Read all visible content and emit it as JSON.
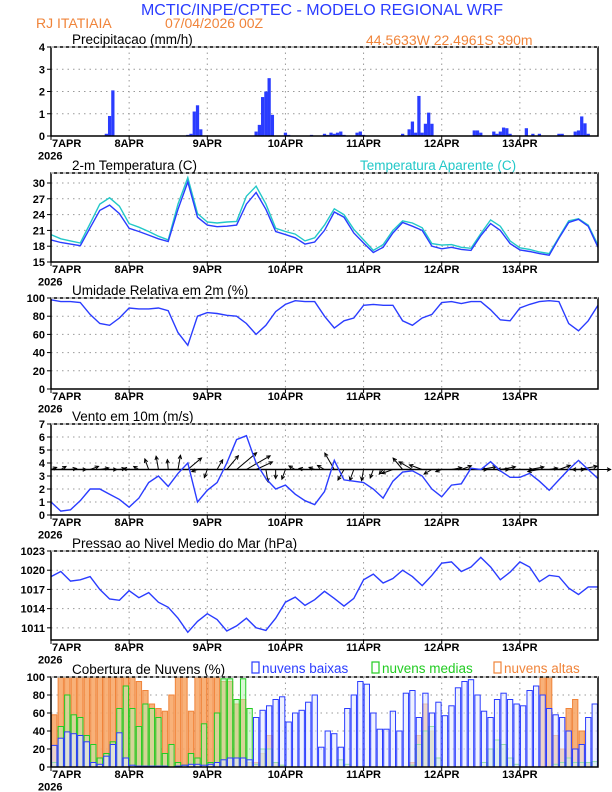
{
  "header": {
    "title": "MCTIC/INPE/CPTEC - MODELO REGIONAL WRF",
    "station": "RJ ITATIAIA",
    "run": "07/04/2026 00Z",
    "location": "44.5633W 22.4961S 390m"
  },
  "colors": {
    "title_blue": "#2a3cff",
    "orange": "#f0843a",
    "line_blue": "#2a3cff",
    "cyan": "#22c8c8",
    "green": "#22cc22",
    "grid": "#9a9a9a"
  },
  "x_axis": {
    "unit": "hours since 07APR2026 00Z",
    "xlim": [
      0,
      168
    ],
    "day_labels": [
      "7APR",
      "8APR",
      "9APR",
      "10APR",
      "11APR",
      "12APR",
      "13APR"
    ],
    "year_label": "2026"
  },
  "chart_data": [
    {
      "id": "precip",
      "type": "bar",
      "title": "Precipitacao (mm/h)",
      "ylim": [
        0,
        4
      ],
      "yticks": [
        0,
        1,
        2,
        3,
        4
      ],
      "grid": true,
      "points": [
        [
          17,
          0.1
        ],
        [
          18,
          0.9
        ],
        [
          19,
          2.05
        ],
        [
          42,
          0.05
        ],
        [
          43,
          0.1
        ],
        [
          44,
          1.1
        ],
        [
          45,
          1.38
        ],
        [
          46,
          0.3
        ],
        [
          63,
          0.2
        ],
        [
          64,
          0.5
        ],
        [
          65,
          1.75
        ],
        [
          66,
          2.0
        ],
        [
          67,
          2.6
        ],
        [
          68,
          0.95
        ],
        [
          72,
          0.15
        ],
        [
          73,
          0.05
        ],
        [
          80,
          0.05
        ],
        [
          84,
          0.1
        ],
        [
          85,
          0.05
        ],
        [
          86,
          0.15
        ],
        [
          87,
          0.1
        ],
        [
          88,
          0.15
        ],
        [
          89,
          0.2
        ],
        [
          90,
          0.05
        ],
        [
          94,
          0.15
        ],
        [
          95,
          0.2
        ],
        [
          96,
          0.05
        ],
        [
          108,
          0.1
        ],
        [
          110,
          0.3
        ],
        [
          111,
          0.65
        ],
        [
          112,
          0.15
        ],
        [
          113,
          1.8
        ],
        [
          114,
          0.15
        ],
        [
          115,
          0.55
        ],
        [
          116,
          1.05
        ],
        [
          117,
          0.55
        ],
        [
          130,
          0.25
        ],
        [
          131,
          0.25
        ],
        [
          132,
          0.15
        ],
        [
          136,
          0.2
        ],
        [
          137,
          0.1
        ],
        [
          138,
          0.2
        ],
        [
          139,
          0.38
        ],
        [
          140,
          0.35
        ],
        [
          141,
          0.1
        ],
        [
          146,
          0.35
        ],
        [
          148,
          0.1
        ],
        [
          150,
          0.1
        ],
        [
          156,
          0.1
        ],
        [
          157,
          0.1
        ],
        [
          161,
          0.2
        ],
        [
          162,
          0.25
        ],
        [
          163,
          0.88
        ],
        [
          164,
          0.57
        ],
        [
          165,
          0.1
        ]
      ]
    },
    {
      "id": "temperature",
      "type": "line",
      "title": "2-m Temperatura (C)",
      "ylim": [
        15,
        31.9
      ],
      "yticks": [
        15,
        18,
        21,
        24,
        27,
        30
      ],
      "grid": true,
      "x_step_hours": 3,
      "series": [
        {
          "name": "2-m Temperatura (C)",
          "color": "#2a3cff",
          "values": [
            19.2,
            18.7,
            18.4,
            18.1,
            21.5,
            24.8,
            25.8,
            24.2,
            21.4,
            20.8,
            20.1,
            19.4,
            18.9,
            25,
            30.2,
            23.5,
            22,
            21.7,
            21.8,
            22,
            26,
            28.2,
            25,
            20.8,
            20.2,
            19.6,
            18.4,
            18.8,
            21,
            24.5,
            23.5,
            20.5,
            18.6,
            16.8,
            17.8,
            20.5,
            22.5,
            21.8,
            21,
            18,
            17.5,
            17.8,
            17.4,
            17.2,
            20,
            22.3,
            21,
            18.5,
            17.3,
            17,
            16.6,
            16.3,
            19.5,
            22.5,
            23.1,
            21.8,
            17.8
          ]
        },
        {
          "name": "Temperatura Aparente (C)",
          "color": "#22c8c8",
          "values": [
            20.2,
            19.4,
            19,
            18.6,
            22.3,
            26,
            27.2,
            25.6,
            22.3,
            21.6,
            20.8,
            19.9,
            19.2,
            26,
            31,
            24.2,
            22.6,
            22.4,
            22.6,
            22.7,
            27.5,
            29.4,
            26,
            21.4,
            20.8,
            20.3,
            19,
            19.6,
            22,
            25.1,
            24,
            21.2,
            19.2,
            17.2,
            18.3,
            21,
            22.8,
            22.4,
            21.5,
            18.5,
            18.2,
            18.3,
            17.8,
            17.6,
            20.4,
            23,
            21.8,
            19,
            17.7,
            17.4,
            16.9,
            16.6,
            19.7,
            22.8,
            23.2,
            22,
            18.2
          ]
        }
      ]
    },
    {
      "id": "humidity",
      "type": "line",
      "title": "Umidade Relativa em 2m (%)",
      "ylim": [
        0,
        100
      ],
      "yticks": [
        0,
        20,
        40,
        60,
        80,
        100
      ],
      "grid": true,
      "x_step_hours": 3,
      "series": [
        {
          "name": "Umidade Relativa",
          "color": "#2a3cff",
          "values": [
            98,
            96,
            96,
            95,
            82,
            72,
            70,
            78,
            89,
            88,
            88,
            89,
            86,
            62,
            48,
            80,
            84,
            83,
            81,
            80,
            72,
            60,
            70,
            85,
            93,
            97,
            96,
            96,
            80,
            67,
            75,
            78,
            92,
            93,
            92,
            92,
            75,
            70,
            78,
            82,
            95,
            96,
            94,
            96,
            96,
            87,
            76,
            75,
            89,
            93,
            96,
            97,
            96,
            72,
            64,
            75,
            92
          ]
        }
      ]
    },
    {
      "id": "wind",
      "type": "line",
      "title": "Vento em 10m (m/s)",
      "ylim": [
        0,
        7
      ],
      "yticks": [
        0,
        1,
        2,
        3,
        4,
        5,
        6,
        7
      ],
      "grid": true,
      "x_step_hours": 3,
      "vector_baseline": 3.5,
      "series": [
        {
          "name": "Velocidade do vento",
          "color": "#2a3cff",
          "values": [
            1,
            0.3,
            0.4,
            1.1,
            2,
            2,
            1.6,
            1.2,
            0.6,
            1.3,
            2.5,
            3,
            2.2,
            3.2,
            4,
            1.0,
            1.9,
            2.5,
            4,
            5.8,
            6.1,
            4,
            2.8,
            2,
            2.3,
            1.6,
            1.1,
            0.8,
            1.8,
            4.2,
            2.7,
            2.6,
            2.5,
            2,
            1.3,
            2.6,
            3.3,
            3.4,
            3,
            2,
            1.4,
            2.3,
            2.4,
            3.6,
            3.5,
            4.1,
            3.4,
            2.9,
            2.9,
            3.2,
            2.6,
            1.9,
            2.7,
            3.5,
            4.2,
            3.5,
            2.8
          ]
        }
      ],
      "vector_direction_deg": [
        20,
        30,
        10,
        0,
        20,
        10,
        0,
        10,
        170,
        150,
        110,
        100,
        95,
        80,
        40,
        200,
        250,
        60,
        50,
        40,
        30,
        25,
        280,
        270,
        250,
        150,
        170,
        160,
        150,
        120,
        240,
        250,
        260,
        250,
        230,
        200,
        130,
        150,
        160,
        210,
        200,
        10,
        20,
        0,
        10,
        0,
        10,
        180,
        0,
        10,
        190,
        10,
        20,
        0,
        10,
        180,
        0
      ]
    },
    {
      "id": "pressure",
      "type": "line",
      "title": "Pressao ao Nivel Medio do Mar (hPa)",
      "ylim": [
        1009.1,
        1023
      ],
      "yticks": [
        1011,
        1014,
        1017,
        1020,
        1023
      ],
      "grid": true,
      "x_step_hours": 3,
      "series": [
        {
          "name": "Pressao",
          "color": "#2a3cff",
          "values": [
            1019,
            1019.8,
            1018.3,
            1018.5,
            1019,
            1017,
            1015.5,
            1015.3,
            1016.8,
            1015.7,
            1016.5,
            1015,
            1014.2,
            1012.5,
            1010.3,
            1012,
            1013.2,
            1012.3,
            1010.5,
            1011.3,
            1012.5,
            1011,
            1010.6,
            1012.5,
            1015,
            1015.8,
            1014.5,
            1015.4,
            1016.7,
            1015.6,
            1014.4,
            1015.6,
            1018.5,
            1019.4,
            1018,
            1018.7,
            1020,
            1019,
            1017.6,
            1019.2,
            1021.1,
            1021.3,
            1019.8,
            1020.5,
            1022,
            1020.5,
            1018.5,
            1019.7,
            1021.3,
            1020.5,
            1018.2,
            1019.2,
            1019,
            1017.2,
            1016.2,
            1017.4,
            1017.4
          ]
        }
      ]
    },
    {
      "id": "clouds",
      "type": "bar",
      "title": "Cobertura de Nuvens (%)",
      "ylim": [
        0,
        100
      ],
      "yticks": [
        0,
        20,
        40,
        60,
        80,
        100
      ],
      "grid": true,
      "x_step_hours": 2,
      "series": [
        {
          "name": "nuvens altas",
          "color": "#f0843a",
          "values": [
            58,
            100,
            100,
            100,
            100,
            100,
            100,
            100,
            100,
            100,
            100,
            100,
            100,
            95,
            85,
            70,
            65,
            62,
            80,
            100,
            100,
            62,
            100,
            100,
            100,
            100,
            95,
            95,
            70,
            75,
            5,
            5,
            15,
            35,
            5,
            2,
            0,
            0,
            0,
            0,
            0,
            0,
            0,
            0,
            0,
            0,
            0,
            0,
            0,
            0,
            0,
            0,
            0,
            0,
            0,
            5,
            35,
            70,
            40,
            0,
            0,
            0,
            0,
            0,
            0,
            0,
            0,
            0,
            0,
            0,
            0,
            0,
            0,
            0,
            0,
            100,
            100,
            35,
            20,
            65,
            75,
            40,
            5,
            0
          ]
        },
        {
          "name": "nuvens medias",
          "color": "#22cc22",
          "values": [
            5,
            45,
            80,
            58,
            55,
            35,
            25,
            10,
            15,
            28,
            65,
            90,
            65,
            45,
            70,
            65,
            55,
            15,
            25,
            5,
            2,
            15,
            10,
            48,
            5,
            60,
            98,
            98,
            75,
            98,
            65,
            3,
            20,
            20,
            5,
            2,
            0,
            0,
            0,
            0,
            0,
            0,
            0,
            0,
            8,
            3,
            0,
            0,
            0,
            0,
            0,
            0,
            0,
            0,
            0,
            2,
            25,
            40,
            45,
            10,
            0,
            0,
            0,
            0,
            0,
            0,
            5,
            20,
            30,
            25,
            10,
            3,
            0,
            0,
            0,
            0,
            0,
            3,
            5,
            10,
            5,
            5,
            5,
            6
          ]
        },
        {
          "name": "nuvens baixas",
          "color": "#2a3cff",
          "values": [
            24,
            32,
            39,
            37,
            35,
            28,
            5,
            3,
            12,
            25,
            38,
            10,
            2,
            1,
            1,
            1,
            1,
            1,
            0,
            1,
            2,
            3,
            3,
            2,
            3,
            5,
            8,
            10,
            10,
            10,
            8,
            55,
            63,
            68,
            75,
            78,
            50,
            60,
            63,
            72,
            80,
            22,
            40,
            37,
            22,
            65,
            80,
            95,
            92,
            60,
            42,
            42,
            62,
            40,
            82,
            85,
            55,
            82,
            60,
            72,
            57,
            68,
            88,
            95,
            97,
            80,
            62,
            55,
            75,
            82,
            75,
            70,
            68,
            85,
            90,
            80,
            65,
            58,
            55,
            40,
            20,
            25,
            55,
            70
          ]
        }
      ],
      "legend": [
        "nuvens baixas",
        "nuvens medias",
        "nuvens altas"
      ]
    }
  ]
}
